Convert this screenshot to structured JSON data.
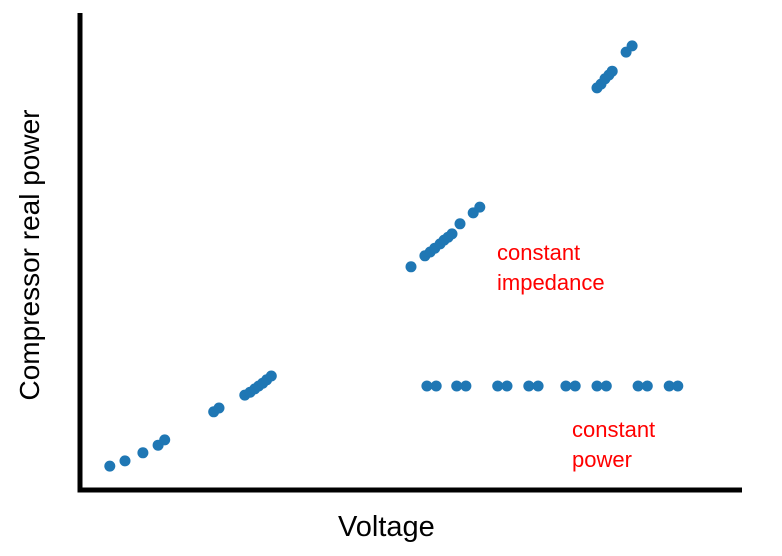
{
  "colors": {
    "point_blue": "#1f77b4",
    "annotation_red": "#ff0000",
    "axis_black": "#000000",
    "background": "#ffffff"
  },
  "chart_data": {
    "type": "scatter",
    "title": "",
    "xlabel": "Voltage",
    "ylabel": "Compressor real power",
    "axis_ticks": "none (qualitative axes, no tick labels or gridlines)",
    "legend": "none",
    "units": "normalized axis fraction, 0 = axis origin, 1 = axis end",
    "xlim": [
      0,
      1
    ],
    "ylim": [
      0,
      1
    ],
    "point_color": "#1f77b4",
    "point_radius_px": 5.5,
    "series": [
      {
        "name": "constant impedance",
        "points": [
          [
            0.045,
            0.05
          ],
          [
            0.068,
            0.061
          ],
          [
            0.095,
            0.078
          ],
          [
            0.118,
            0.094
          ],
          [
            0.128,
            0.105
          ],
          [
            0.202,
            0.164
          ],
          [
            0.21,
            0.172
          ],
          [
            0.249,
            0.199
          ],
          [
            0.257,
            0.205
          ],
          [
            0.264,
            0.212
          ],
          [
            0.27,
            0.218
          ],
          [
            0.276,
            0.224
          ],
          [
            0.282,
            0.231
          ],
          [
            0.289,
            0.239
          ],
          [
            0.5,
            0.468
          ],
          [
            0.521,
            0.491
          ],
          [
            0.529,
            0.499
          ],
          [
            0.536,
            0.507
          ],
          [
            0.544,
            0.516
          ],
          [
            0.55,
            0.524
          ],
          [
            0.556,
            0.53
          ],
          [
            0.562,
            0.537
          ],
          [
            0.574,
            0.558
          ],
          [
            0.594,
            0.581
          ],
          [
            0.604,
            0.593
          ],
          [
            0.781,
            0.843
          ],
          [
            0.787,
            0.851
          ],
          [
            0.793,
            0.862
          ],
          [
            0.799,
            0.87
          ],
          [
            0.804,
            0.878
          ],
          [
            0.825,
            0.918
          ],
          [
            0.834,
            0.931
          ]
        ]
      },
      {
        "name": "constant power",
        "points": [
          [
            0.524,
            0.218
          ],
          [
            0.538,
            0.218
          ],
          [
            0.569,
            0.218
          ],
          [
            0.583,
            0.218
          ],
          [
            0.631,
            0.218
          ],
          [
            0.645,
            0.218
          ],
          [
            0.678,
            0.218
          ],
          [
            0.692,
            0.218
          ],
          [
            0.734,
            0.218
          ],
          [
            0.748,
            0.218
          ],
          [
            0.781,
            0.218
          ],
          [
            0.795,
            0.218
          ],
          [
            0.843,
            0.218
          ],
          [
            0.857,
            0.218
          ],
          [
            0.89,
            0.218
          ],
          [
            0.903,
            0.218
          ]
        ]
      }
    ],
    "annotations": [
      {
        "text": "constant\nimpedance",
        "color": "#ff0000"
      },
      {
        "text": "constant\npower",
        "color": "#ff0000"
      }
    ]
  }
}
